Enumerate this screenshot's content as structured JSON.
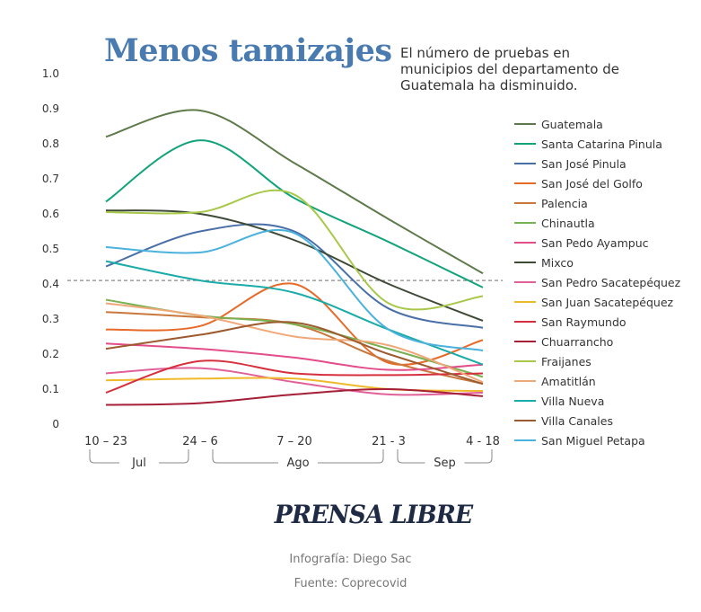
{
  "header": {
    "title": "Menos tamizajes",
    "subtitle": "El número de pruebas en municipios del departamento de Guatemala ha disminuido."
  },
  "chart_data": {
    "type": "line",
    "title": "Menos tamizajes",
    "x": [
      "10 – 23",
      "24 – 6",
      "7 – 20",
      "21 - 3",
      "4 - 18"
    ],
    "month_groups": [
      {
        "label": "Jul",
        "from": 0,
        "to": 1
      },
      {
        "label": "Ago",
        "from": 1,
        "to": 3
      },
      {
        "label": "Sep",
        "from": 3,
        "to": 4
      }
    ],
    "ylim": [
      0,
      1
    ],
    "yticks": [
      "0",
      "0.1",
      "0.2",
      "0.3",
      "0.4",
      "0.5",
      "0.6",
      "0.7",
      "0.8",
      "0.9",
      "1.0"
    ],
    "reference_line": 0.41,
    "legend_position": "right",
    "series": [
      {
        "name": "Guatemala",
        "color": "#5f7a4a",
        "values": [
          0.82,
          0.895,
          0.745,
          0.585,
          0.43
        ]
      },
      {
        "name": "Santa Catarina Pinula",
        "color": "#12a37a",
        "values": [
          0.635,
          0.81,
          0.645,
          0.52,
          0.39
        ]
      },
      {
        "name": "San José Pinula",
        "color": "#4a6fa8",
        "values": [
          0.45,
          0.55,
          0.55,
          0.33,
          0.275
        ]
      },
      {
        "name": "San José del Golfo",
        "color": "#e86a28",
        "values": [
          0.27,
          0.28,
          0.4,
          0.175,
          0.24
        ]
      },
      {
        "name": "Palencia",
        "color": "#c9773c",
        "values": [
          0.32,
          0.305,
          0.285,
          0.18,
          0.115
        ]
      },
      {
        "name": "Chinautla",
        "color": "#79b050",
        "values": [
          0.355,
          0.31,
          0.285,
          0.215,
          0.135
        ]
      },
      {
        "name": "San Pedo Ayampuc",
        "color": "#e24d8a",
        "values": [
          0.23,
          0.215,
          0.19,
          0.155,
          0.17
        ]
      },
      {
        "name": "Mixco",
        "color": "#3f4a36",
        "values": [
          0.61,
          0.6,
          0.525,
          0.4,
          0.295
        ]
      },
      {
        "name": "San Pedro Sacatepéquez",
        "color": "#e0609a",
        "values": [
          0.145,
          0.16,
          0.12,
          0.085,
          0.09
        ]
      },
      {
        "name": "San Juan Sacatepéquez",
        "color": "#f0b92a",
        "values": [
          0.125,
          0.13,
          0.13,
          0.1,
          0.095
        ]
      },
      {
        "name": "San Raymundo",
        "color": "#d6303e",
        "values": [
          0.09,
          0.18,
          0.145,
          0.14,
          0.145
        ]
      },
      {
        "name": "Chuarrancho",
        "color": "#a51f36",
        "values": [
          0.055,
          0.06,
          0.085,
          0.1,
          0.08
        ]
      },
      {
        "name": "Fraijanes",
        "color": "#a8c84a",
        "values": [
          0.605,
          0.605,
          0.655,
          0.345,
          0.365
        ]
      },
      {
        "name": "Amatitlán",
        "color": "#f0a878",
        "values": [
          0.345,
          0.31,
          0.25,
          0.225,
          0.12
        ]
      },
      {
        "name": "Villa Nueva",
        "color": "#1aaca8",
        "values": [
          0.465,
          0.41,
          0.375,
          0.27,
          0.17
        ]
      },
      {
        "name": "Villa Canales",
        "color": "#9c5a2e",
        "values": [
          0.215,
          0.255,
          0.29,
          0.2,
          0.115
        ]
      },
      {
        "name": "San Miguel Petapa",
        "color": "#4ab2dc",
        "values": [
          0.505,
          0.49,
          0.545,
          0.27,
          0.21
        ]
      }
    ]
  },
  "footer": {
    "logo": "PRENSA LIBRE",
    "credit": "Infografía: Diego Sac",
    "source": "Fuente: Coprecovid"
  }
}
